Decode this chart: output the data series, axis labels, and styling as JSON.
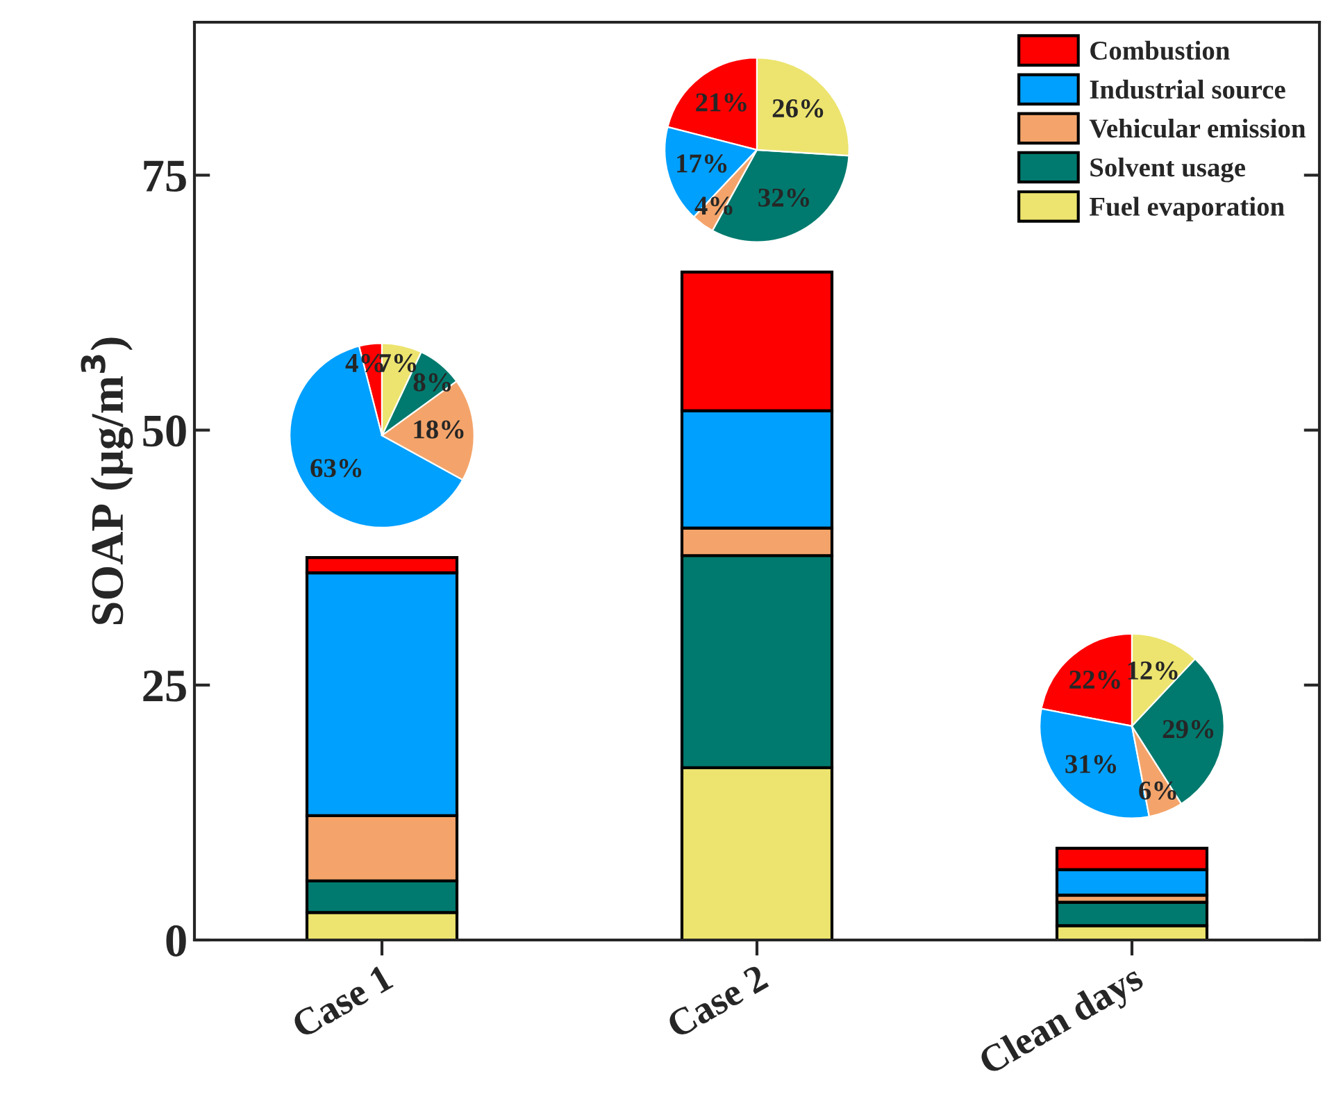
{
  "chart_data": [
    {
      "type": "bar",
      "stacked": true,
      "ylabel": "SOAP (μg/m$^{3}$)",
      "categories": [
        "Case 1",
        "Case 2",
        "Clean days"
      ],
      "series": [
        {
          "name": "Fuel evaporation",
          "color": "#ece46e",
          "values": [
            2.7,
            16.9,
            1.4
          ]
        },
        {
          "name": "Solvent usage",
          "color": "#007a6e",
          "values": [
            3.1,
            20.8,
            2.3
          ]
        },
        {
          "name": "Vehicular emission",
          "color": "#f4a46a",
          "values": [
            6.4,
            2.7,
            0.7
          ]
        },
        {
          "name": "Industrial source",
          "color": "#00a0ff",
          "values": [
            23.8,
            11.5,
            2.5
          ]
        },
        {
          "name": "Combustion",
          "color": "#ff0000",
          "values": [
            1.5,
            13.6,
            2.1
          ]
        }
      ],
      "ylim": [
        0,
        90
      ],
      "yticks": [
        0,
        25,
        50,
        75
      ],
      "grid": false,
      "legend": "top right"
    },
    {
      "type": "pie",
      "categories": [
        null,
        null,
        null,
        null,
        null
      ],
      "values": [
        4,
        63,
        18,
        8,
        7
      ],
      "value_labels": [
        "4%",
        "63%",
        "18%",
        "8%",
        "7%"
      ],
      "colors": [
        "#ff0000",
        "#00a0ff",
        "#f4a46a",
        "#007a6e",
        "#ece46e"
      ]
    },
    {
      "type": "pie",
      "categories": [
        null,
        null,
        null,
        null,
        null
      ],
      "values": [
        21,
        17,
        4,
        32,
        26
      ],
      "value_labels": [
        "21%",
        "17%",
        "4%",
        "32%",
        "26%"
      ],
      "colors": [
        "#ff0000",
        "#00a0ff",
        "#f4a46a",
        "#007a6e",
        "#ece46e"
      ]
    },
    {
      "type": "pie",
      "categories": [
        null,
        null,
        null,
        null,
        null
      ],
      "values": [
        22,
        31,
        6,
        29,
        12
      ],
      "value_labels": [
        "22%",
        "31%",
        "6%",
        "29%",
        "12%"
      ],
      "colors": [
        "#ff0000",
        "#00a0ff",
        "#f4a46a",
        "#007a6e",
        "#ece46e"
      ]
    }
  ]
}
